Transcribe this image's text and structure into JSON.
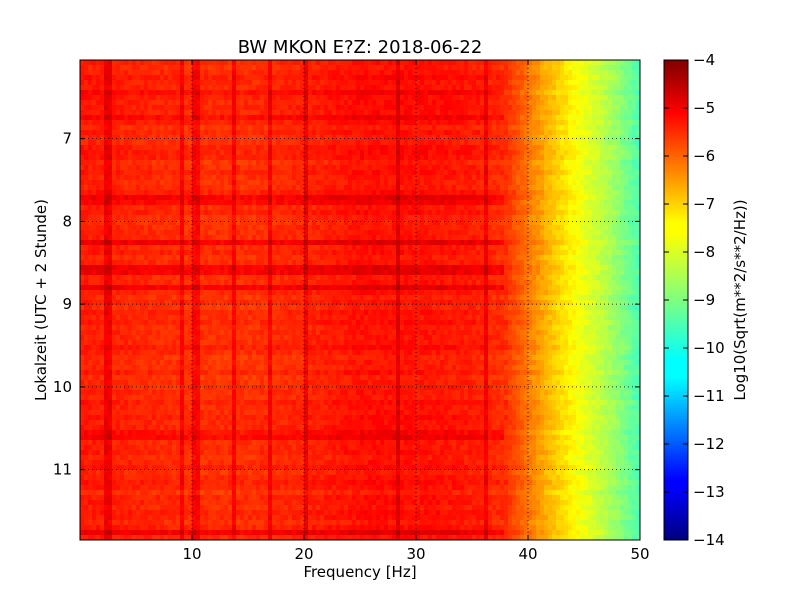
{
  "chart_data": {
    "type": "heatmap",
    "title": "BW MKON E?Z: 2018-06-22",
    "xlabel": "Frequency [Hz]",
    "ylabel": "Lokalzeit (UTC + 2 Stunde)",
    "xlim": [
      0,
      50
    ],
    "ylim": [
      11.85,
      6.05
    ],
    "x_ticks": [
      10,
      20,
      30,
      40,
      50
    ],
    "y_ticks": [
      7,
      8,
      9,
      10,
      11
    ],
    "grid": true,
    "colorbar": {
      "label": "Log10(Sqrt(m**2/s**2/Hz))",
      "range": [
        -14,
        -4
      ],
      "ticks": [
        -4,
        -5,
        -6,
        -7,
        -8,
        -9,
        -10,
        -11,
        -12,
        -13,
        -14
      ],
      "colormap": "jet"
    },
    "spectrum_profile": {
      "frequency_hz": [
        0,
        5,
        10,
        15,
        20,
        25,
        30,
        35,
        38,
        40,
        42,
        44,
        46,
        48,
        50
      ],
      "log10_amplitude": [
        -5.5,
        -5.6,
        -5.7,
        -5.7,
        -5.6,
        -5.4,
        -5.4,
        -5.5,
        -5.7,
        -6.4,
        -7.1,
        -7.7,
        -8.2,
        -8.8,
        -9.5
      ]
    },
    "line_features_hz": [
      2.5,
      9.1,
      10.3,
      13.7,
      16.9,
      20.1,
      28.3,
      36.3
    ],
    "strong_band_times_h": [
      6.45,
      6.75,
      7.75,
      8.25,
      8.6,
      8.8,
      10.6,
      11.75
    ]
  }
}
